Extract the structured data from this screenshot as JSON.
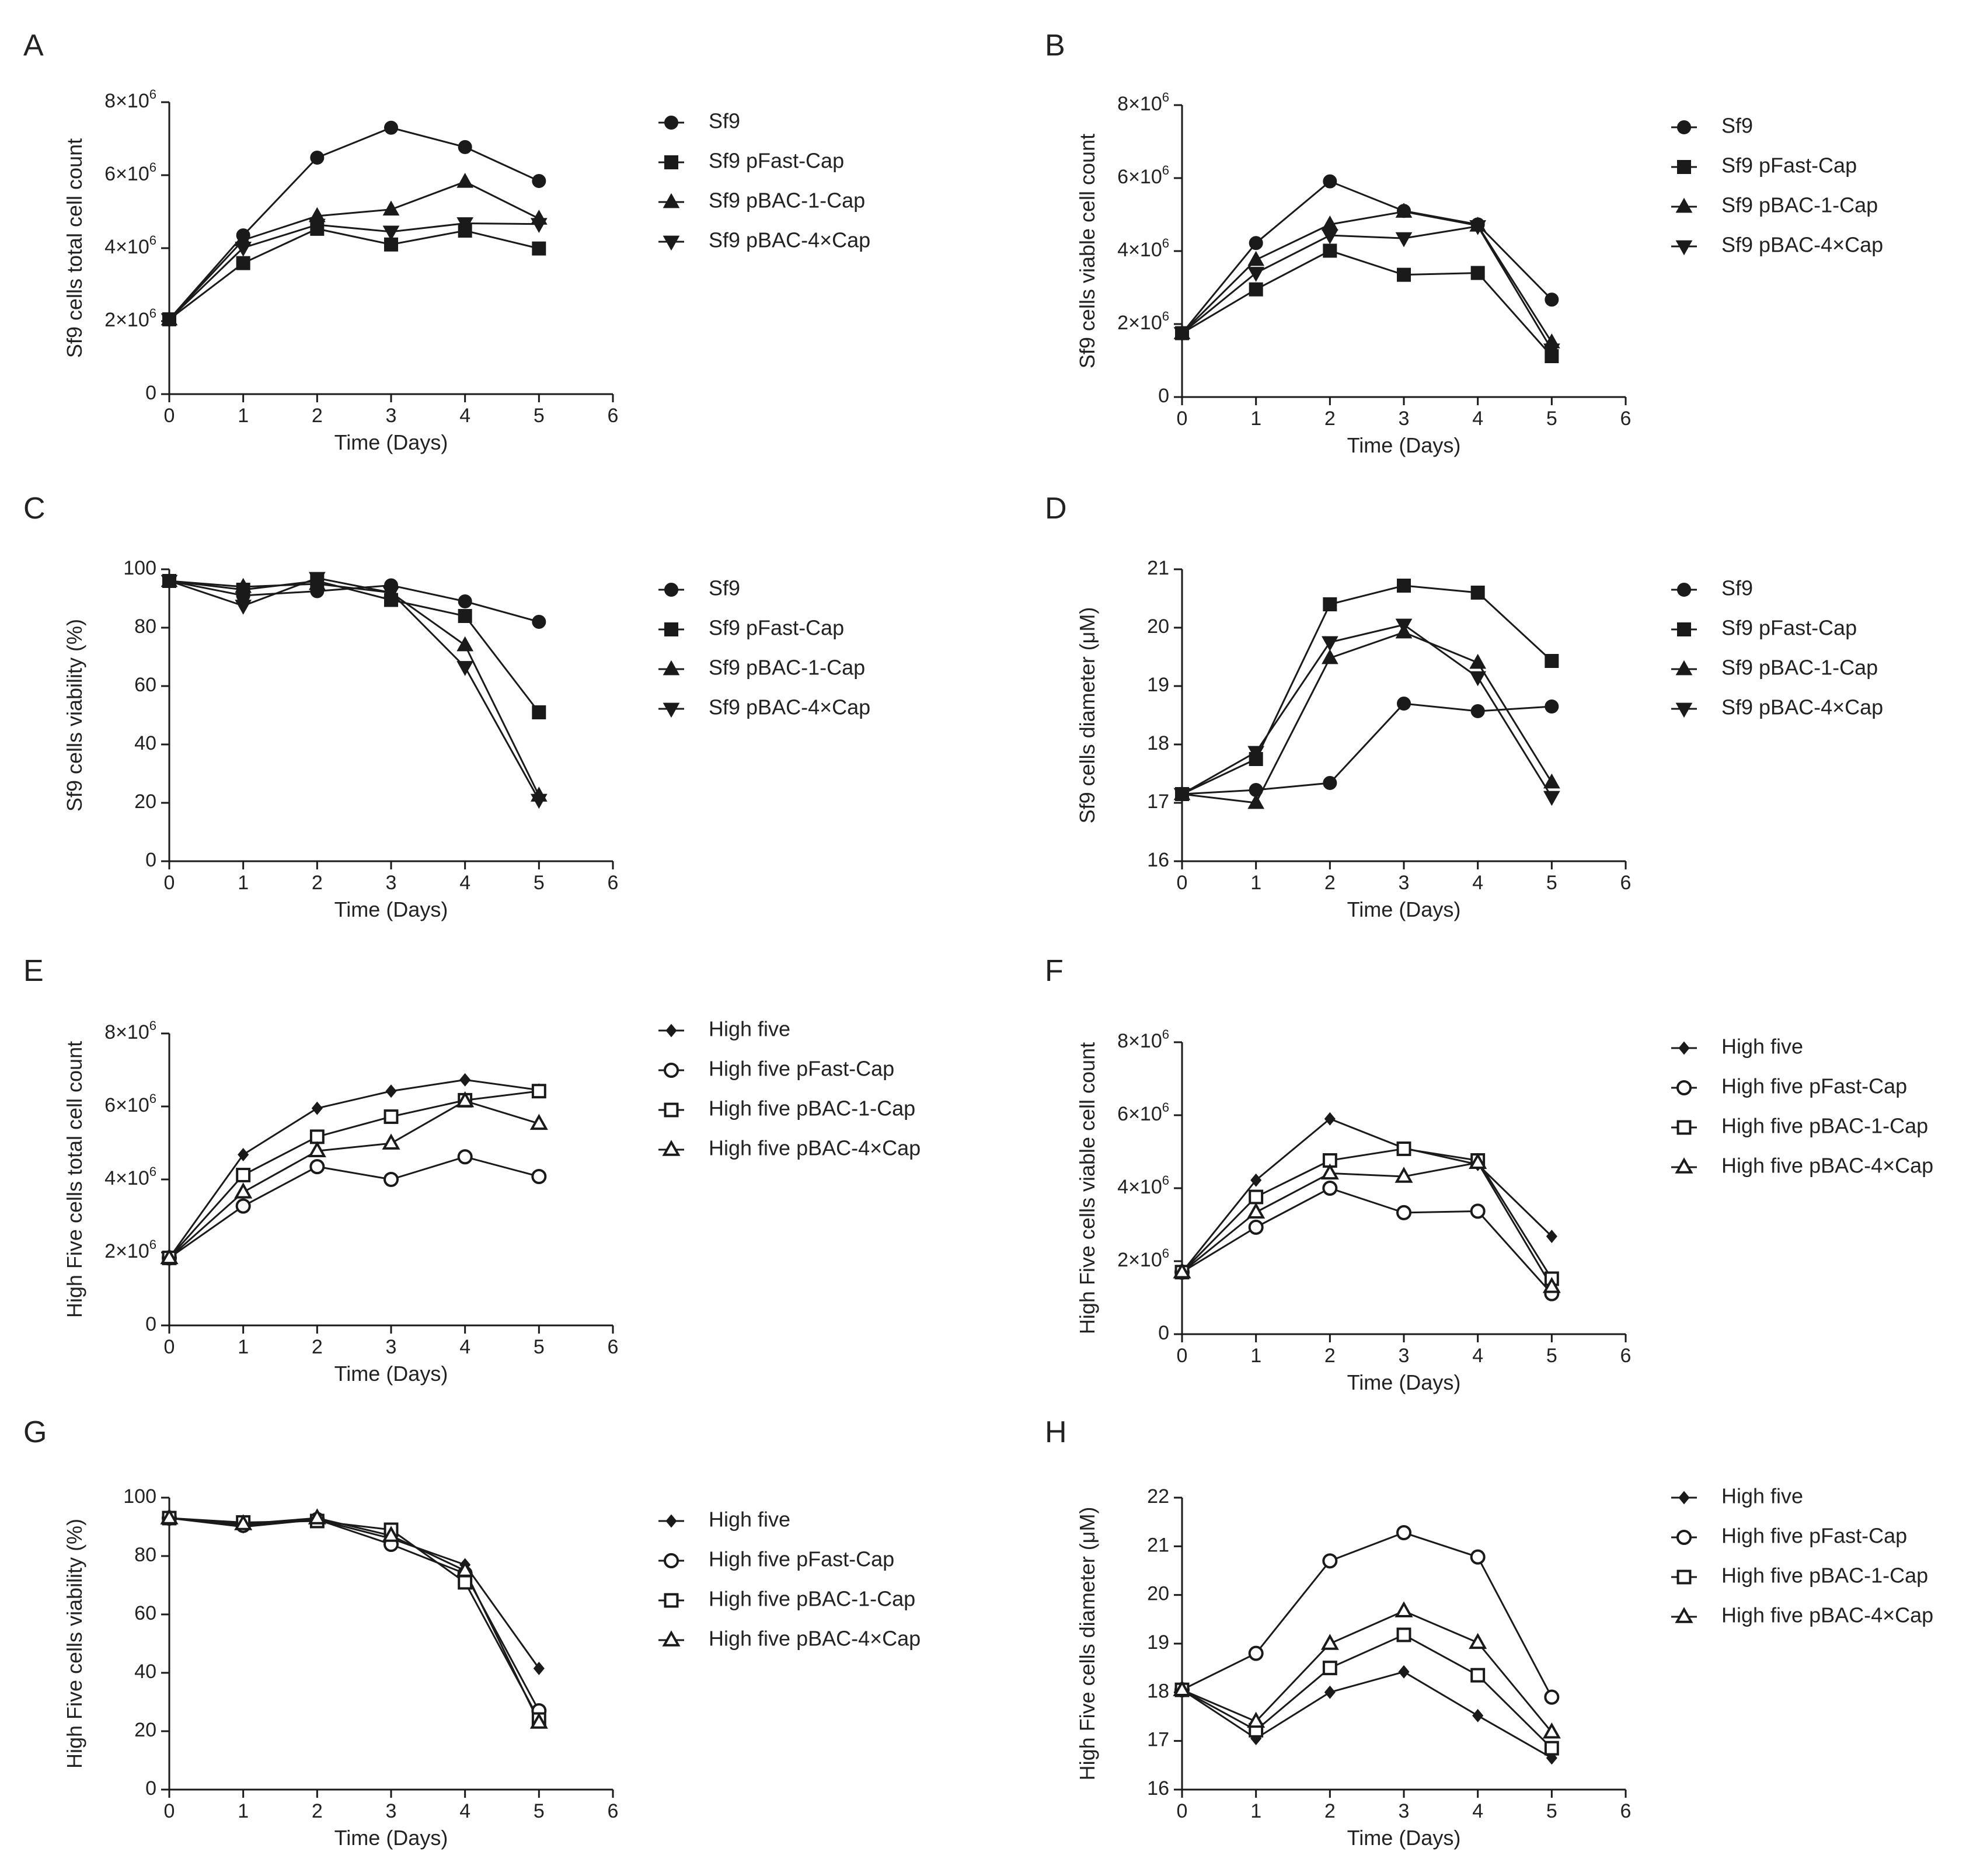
{
  "chart_data": [
    {
      "panel": "A",
      "type": "line",
      "ylabel": "Sf9 cells  total cell count",
      "xlabel": "Time (Days)",
      "xlim": [
        0,
        6
      ],
      "xticks": [
        "0",
        "1",
        "2",
        "3",
        "4",
        "5",
        "6"
      ],
      "ylim": [
        0,
        8000000
      ],
      "yticks": [
        0,
        2000000,
        4000000,
        6000000,
        8000000
      ],
      "ytick_labels": [
        "0",
        "2×10⁶",
        "4×10⁶",
        "6×10⁶",
        "8×10⁶"
      ],
      "x": [
        0,
        1,
        2,
        3,
        4,
        5
      ],
      "series": [
        {
          "name": "Sf9",
          "marker": "circle",
          "values": [
            2050000,
            4350000,
            6480000,
            7300000,
            6770000,
            5840000
          ]
        },
        {
          "name": "Sf9 pFast-Cap",
          "marker": "square",
          "values": [
            2050000,
            3590000,
            4530000,
            4100000,
            4480000,
            3990000
          ]
        },
        {
          "name": "Sf9 pBAC-1-Cap",
          "marker": "triangle-up",
          "values": [
            2050000,
            4220000,
            4880000,
            5060000,
            5820000,
            4810000
          ]
        },
        {
          "name": "Sf9 pBAC-4×Cap",
          "marker": "triangle-down",
          "values": [
            2050000,
            4010000,
            4640000,
            4450000,
            4680000,
            4660000
          ]
        }
      ]
    },
    {
      "panel": "B",
      "type": "line",
      "ylabel": "Sf9 cells viable cell count",
      "xlabel": "Time (Days)",
      "xlim": [
        0,
        6
      ],
      "xticks": [
        "0",
        "1",
        "2",
        "3",
        "4",
        "5",
        "6"
      ],
      "ylim": [
        0,
        8000000
      ],
      "yticks": [
        0,
        2000000,
        4000000,
        6000000,
        8000000
      ],
      "ytick_labels": [
        "0",
        "2×10⁶",
        "4×10⁶",
        "6×10⁶",
        "8×10⁶"
      ],
      "x": [
        0,
        1,
        2,
        3,
        4,
        5
      ],
      "series": [
        {
          "name": "Sf9",
          "marker": "circle",
          "values": [
            1750000,
            4220000,
            5910000,
            5100000,
            4730000,
            2670000
          ]
        },
        {
          "name": "Sf9 pFast-Cap",
          "marker": "square",
          "values": [
            1750000,
            2950000,
            4010000,
            3350000,
            3400000,
            1120000
          ]
        },
        {
          "name": "Sf9 pBAC-1-Cap",
          "marker": "triangle-up",
          "values": [
            1750000,
            3760000,
            4730000,
            5080000,
            4700000,
            1500000
          ]
        },
        {
          "name": "Sf9 pBAC-4×Cap",
          "marker": "triangle-down",
          "values": [
            1750000,
            3400000,
            4430000,
            4350000,
            4680000,
            1300000
          ]
        }
      ]
    },
    {
      "panel": "C",
      "type": "line",
      "ylabel": "Sf9 cells viability (%)",
      "xlabel": "Time (Days)",
      "xlim": [
        0,
        6
      ],
      "xticks": [
        "0",
        "1",
        "2",
        "3",
        "4",
        "5",
        "6"
      ],
      "ylim": [
        0,
        100
      ],
      "yticks": [
        0,
        20,
        40,
        60,
        80,
        100
      ],
      "ytick_labels": [
        "0",
        "20",
        "40",
        "60",
        "80",
        "100"
      ],
      "x": [
        0,
        1,
        2,
        3,
        4,
        5
      ],
      "series": [
        {
          "name": "Sf9",
          "marker": "circle",
          "values": [
            96,
            91,
            92.5,
            94.5,
            89,
            82
          ]
        },
        {
          "name": "Sf9 pFast-Cap",
          "marker": "square",
          "values": [
            96,
            93,
            96,
            89.5,
            84,
            51
          ]
        },
        {
          "name": "Sf9 pBAC-1-Cap",
          "marker": "triangle-up",
          "values": [
            96,
            94,
            95,
            92,
            74,
            22.5
          ]
        },
        {
          "name": "Sf9 pBAC-4×Cap",
          "marker": "triangle-down",
          "values": [
            96,
            87.5,
            97,
            92,
            66.5,
            21
          ]
        }
      ]
    },
    {
      "panel": "D",
      "type": "line",
      "ylabel": "Sf9 cells diameter (μM)",
      "xlabel": "Time (Days)",
      "xlim": [
        0,
        6
      ],
      "xticks": [
        "0",
        "1",
        "2",
        "3",
        "4",
        "5",
        "6"
      ],
      "ylim": [
        16,
        21
      ],
      "yticks": [
        16,
        17,
        18,
        19,
        20,
        21
      ],
      "ytick_labels": [
        "16",
        "17",
        "18",
        "19",
        "20",
        "21"
      ],
      "x": [
        0,
        1,
        2,
        3,
        4,
        5
      ],
      "series": [
        {
          "name": "Sf9",
          "marker": "circle",
          "values": [
            17.15,
            17.22,
            17.34,
            18.7,
            18.57,
            18.65
          ]
        },
        {
          "name": "Sf9 pFast-Cap",
          "marker": "square",
          "values": [
            17.15,
            17.75,
            20.4,
            20.72,
            20.6,
            19.43
          ]
        },
        {
          "name": "Sf9 pBAC-1-Cap",
          "marker": "triangle-up",
          "values": [
            17.15,
            17.0,
            19.48,
            19.92,
            19.4,
            17.35
          ]
        },
        {
          "name": "Sf9 pBAC-4×Cap",
          "marker": "triangle-down",
          "values": [
            17.15,
            17.87,
            19.75,
            20.05,
            19.15,
            17.1
          ]
        }
      ]
    },
    {
      "panel": "E",
      "type": "line",
      "ylabel": "High Five cells  total cell count",
      "xlabel": "Time (Days)",
      "xlim": [
        0,
        6
      ],
      "xticks": [
        "0",
        "1",
        "2",
        "3",
        "4",
        "5",
        "6"
      ],
      "ylim": [
        0,
        8000000
      ],
      "yticks": [
        0,
        2000000,
        4000000,
        6000000,
        8000000
      ],
      "ytick_labels": [
        "0",
        "2×10⁶",
        "4×10⁶",
        "6×10⁶",
        "8×10⁶"
      ],
      "x": [
        0,
        1,
        2,
        3,
        4,
        5
      ],
      "series": [
        {
          "name": "High five",
          "marker": "diamond",
          "values": [
            1850000,
            4680000,
            5950000,
            6420000,
            6730000,
            6450000
          ]
        },
        {
          "name": "High five pFast-Cap",
          "marker": "open-circle",
          "values": [
            1850000,
            3270000,
            4350000,
            4000000,
            4620000,
            4080000
          ]
        },
        {
          "name": "High five pBAC-1-Cap",
          "marker": "open-square",
          "values": [
            1850000,
            4120000,
            5170000,
            5720000,
            6170000,
            6420000
          ]
        },
        {
          "name": "High five pBAC-4×Cap",
          "marker": "open-triangle",
          "values": [
            1850000,
            3650000,
            4780000,
            4990000,
            6150000,
            5530000
          ]
        }
      ]
    },
    {
      "panel": "F",
      "type": "line",
      "ylabel": "High Five cells viable cell count",
      "xlabel": "Time (Days)",
      "xlim": [
        0,
        6
      ],
      "xticks": [
        "0",
        "1",
        "2",
        "3",
        "4",
        "5",
        "6"
      ],
      "ylim": [
        0,
        8000000
      ],
      "yticks": [
        0,
        2000000,
        4000000,
        6000000,
        8000000
      ],
      "ytick_labels": [
        "0",
        "2×10⁶",
        "4×10⁶",
        "6×10⁶",
        "8×10⁶"
      ],
      "x": [
        0,
        1,
        2,
        3,
        4,
        5
      ],
      "series": [
        {
          "name": "High five",
          "marker": "diamond",
          "values": [
            1700000,
            4220000,
            5900000,
            5100000,
            4650000,
            2680000
          ]
        },
        {
          "name": "High five pFast-Cap",
          "marker": "open-circle",
          "values": [
            1700000,
            2930000,
            4000000,
            3330000,
            3370000,
            1110000
          ]
        },
        {
          "name": "High five pBAC-1-Cap",
          "marker": "open-square",
          "values": [
            1700000,
            3760000,
            4760000,
            5080000,
            4760000,
            1520000
          ]
        },
        {
          "name": "High five pBAC-4×Cap",
          "marker": "open-triangle",
          "values": [
            1700000,
            3340000,
            4410000,
            4320000,
            4700000,
            1300000
          ]
        }
      ]
    },
    {
      "panel": "G",
      "type": "line",
      "ylabel": "High Five cells viability (%)",
      "xlabel": "Time (Days)",
      "xlim": [
        0,
        6
      ],
      "xticks": [
        "0",
        "1",
        "2",
        "3",
        "4",
        "5",
        "6"
      ],
      "ylim": [
        0,
        100
      ],
      "yticks": [
        0,
        20,
        40,
        60,
        80,
        100
      ],
      "ytick_labels": [
        "0",
        "20",
        "40",
        "60",
        "80",
        "100"
      ],
      "x": [
        0,
        1,
        2,
        3,
        4,
        5
      ],
      "series": [
        {
          "name": "High five",
          "marker": "diamond",
          "values": [
            93,
            90,
            92.5,
            86,
            77,
            41.5
          ]
        },
        {
          "name": "High five pFast-Cap",
          "marker": "open-circle",
          "values": [
            93,
            90.5,
            92.5,
            84,
            74,
            27
          ]
        },
        {
          "name": "High five pBAC-1-Cap",
          "marker": "open-square",
          "values": [
            93,
            91.5,
            92,
            89,
            71,
            24
          ]
        },
        {
          "name": "High five pBAC-4×Cap",
          "marker": "open-triangle",
          "values": [
            93,
            91,
            93,
            87,
            75,
            23
          ]
        }
      ]
    },
    {
      "panel": "H",
      "type": "line",
      "ylabel": "High Five cells diameter (μM)",
      "xlabel": "Time (Days)",
      "xlim": [
        0,
        6
      ],
      "xticks": [
        "0",
        "1",
        "2",
        "3",
        "4",
        "5",
        "6"
      ],
      "ylim": [
        16,
        22
      ],
      "yticks": [
        16,
        17,
        18,
        19,
        20,
        21,
        22
      ],
      "ytick_labels": [
        "16",
        "17",
        "18",
        "19",
        "20",
        "21",
        "22"
      ],
      "x": [
        0,
        1,
        2,
        3,
        4,
        5
      ],
      "series": [
        {
          "name": "High five",
          "marker": "diamond",
          "values": [
            18.05,
            17.05,
            18.0,
            18.42,
            17.52,
            16.65
          ]
        },
        {
          "name": "High five pFast-Cap",
          "marker": "open-circle",
          "values": [
            18.05,
            18.8,
            20.7,
            21.28,
            20.78,
            17.9
          ]
        },
        {
          "name": "High five pBAC-1-Cap",
          "marker": "open-square",
          "values": [
            18.05,
            17.22,
            18.5,
            19.18,
            18.35,
            16.85
          ]
        },
        {
          "name": "High five pBAC-4×Cap",
          "marker": "open-triangle",
          "values": [
            18.05,
            17.4,
            19.0,
            19.67,
            19.02,
            17.18
          ]
        }
      ]
    }
  ]
}
